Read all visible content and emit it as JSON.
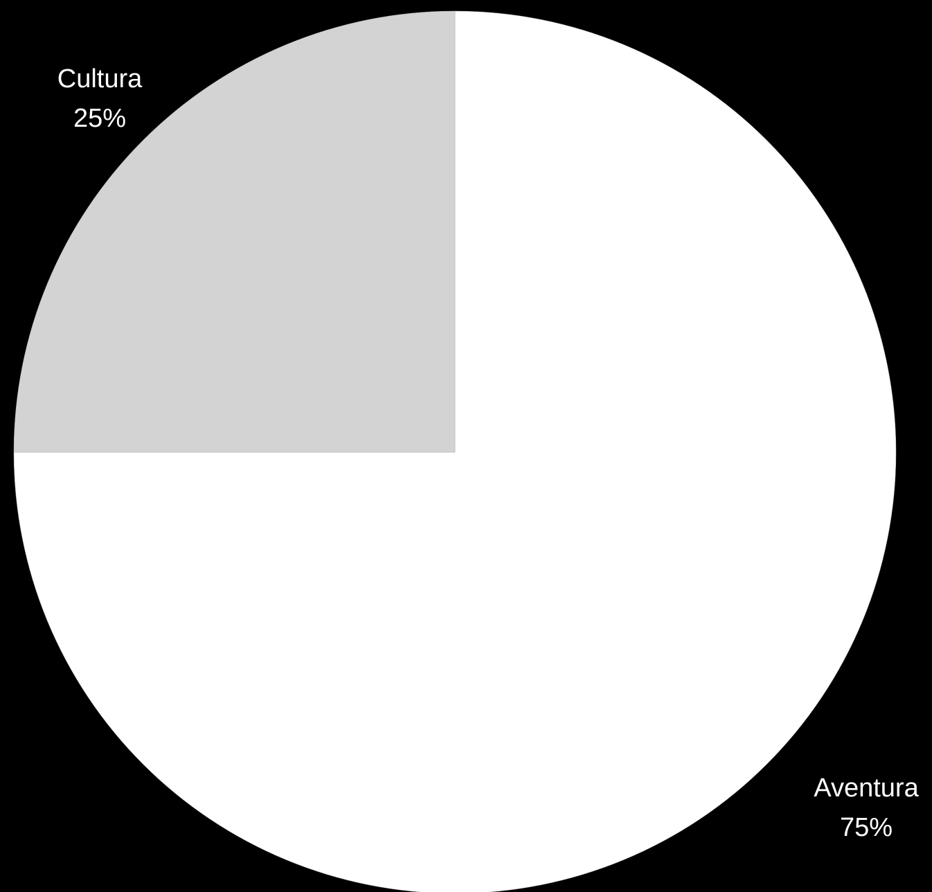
{
  "chart_data": {
    "type": "pie",
    "title": "",
    "start_angle_deg": 0,
    "direction": "counterclockwise-from-top",
    "slices": [
      {
        "label": "Aventura",
        "value": 75,
        "value_label": "75%",
        "color": "#ffffff"
      },
      {
        "label": "Cultura",
        "value": 25,
        "value_label": "25%",
        "color": "#d3d3d3"
      }
    ],
    "legend": "none",
    "background": "#000000"
  }
}
